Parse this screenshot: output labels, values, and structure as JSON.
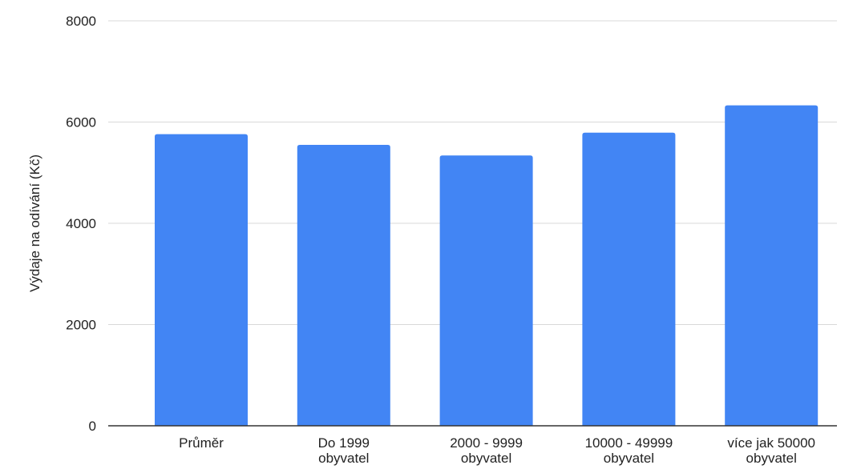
{
  "chart_data": {
    "type": "bar",
    "title": "",
    "xlabel": "",
    "ylabel": "Výdaje na odívání (Kč)",
    "categories": [
      [
        "Průměr"
      ],
      [
        "Do 1999",
        "obyvatel"
      ],
      [
        "2000 - 9999",
        "obyvatel"
      ],
      [
        "10000 - 49999",
        "obyvatel"
      ],
      [
        "více jak 50000",
        "obyvatel"
      ]
    ],
    "values": [
      5760,
      5550,
      5340,
      5790,
      6330
    ],
    "ylim": [
      0,
      8000
    ],
    "yticks": [
      "0",
      "2000",
      "4000",
      "6000",
      "8000"
    ],
    "grid": true,
    "legend": "none",
    "colors": {
      "bar": "#4285f4"
    }
  }
}
